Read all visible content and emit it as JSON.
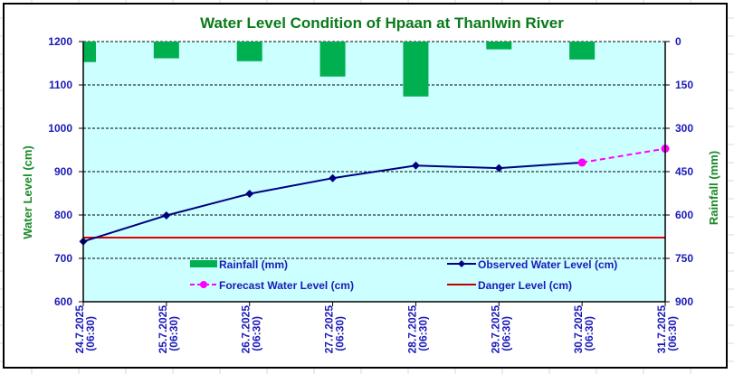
{
  "chart_data": {
    "type": "bar+line",
    "title": "Water Level Condition of Hpaan at Thanlwin River",
    "categories": [
      "24.7.2025\n(06:30)",
      "25.7.2025\n(06:30)",
      "26.7.2025\n(06:30)",
      "27.7.2025\n(06:30)",
      "28.7.2025\n(06:30)",
      "29.7.2025\n(06:30)",
      "30.7.2025\n(06:30)",
      "31.7.2025\n(06:30)"
    ],
    "category_dates": [
      "24.7.2025",
      "25.7.2025",
      "26.7.2025",
      "27.7.2025",
      "28.7.2025",
      "29.7.2025",
      "30.7.2025",
      "31.7.2025"
    ],
    "category_times": [
      "(06:30)",
      "(06:30)",
      "(06:30)",
      "(06:30)",
      "(06:30)",
      "(06:30)",
      "(06:30)",
      "(06:30)"
    ],
    "ylabel": "Water Level (cm)",
    "y2label": "Rainfall (mm)",
    "ylim": [
      600,
      1200
    ],
    "yticks": [
      600,
      700,
      800,
      900,
      1000,
      1100,
      1200
    ],
    "y2lim": [
      900,
      0
    ],
    "y2ticks": [
      0,
      150,
      300,
      450,
      600,
      750,
      900
    ],
    "y2_reversed": true,
    "grid": "horizontal dashed",
    "legend_position": "inside-bottom",
    "series": [
      {
        "name": "Rainfall (mm)",
        "type": "bar",
        "axis": "right",
        "color": "#00b050",
        "values": [
          71,
          58,
          68,
          121,
          190,
          27,
          62,
          null
        ]
      },
      {
        "name": "Observed Water Level (cm)",
        "type": "line",
        "axis": "left",
        "color": "#000080",
        "marker": "diamond",
        "values": [
          739,
          799,
          849,
          885,
          914,
          908,
          921,
          null
        ]
      },
      {
        "name": "Forecast Water Level (cm)",
        "type": "line",
        "axis": "left",
        "color": "#ff00ff",
        "marker": "circle",
        "dash": true,
        "values": [
          null,
          null,
          null,
          null,
          null,
          null,
          921,
          953
        ]
      },
      {
        "name": "Danger Level (cm)",
        "type": "hline",
        "axis": "left",
        "color": "#e00000",
        "value": 748
      }
    ],
    "legend": [
      {
        "label": "Rainfall (mm)",
        "key": "rainfall"
      },
      {
        "label": "Observed Water Level (cm)",
        "key": "observed"
      },
      {
        "label": "Forecast Water Level (cm)",
        "key": "forecast"
      },
      {
        "label": "Danger Level (cm)",
        "key": "danger"
      }
    ],
    "colors": {
      "plot_background": "#ccffff",
      "title": "#0a7a1a",
      "ticks": "#1a1ab8",
      "axis_titles": "#1a8a2a"
    }
  }
}
